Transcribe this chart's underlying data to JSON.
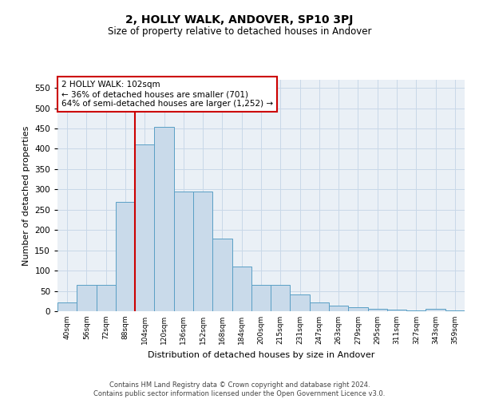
{
  "title": "2, HOLLY WALK, ANDOVER, SP10 3PJ",
  "subtitle": "Size of property relative to detached houses in Andover",
  "xlabel": "Distribution of detached houses by size in Andover",
  "ylabel": "Number of detached properties",
  "footer_line1": "Contains HM Land Registry data © Crown copyright and database right 2024.",
  "footer_line2": "Contains public sector information licensed under the Open Government Licence v3.0.",
  "bar_color": "#c9daea",
  "bar_edge_color": "#5a9fc5",
  "bg_color": "#eaf0f6",
  "grid_color": "#c8d8e8",
  "annotation_text": "2 HOLLY WALK: 102sqm\n← 36% of detached houses are smaller (701)\n64% of semi-detached houses are larger (1,252) →",
  "annotation_box_color": "#cc0000",
  "vline_color": "#cc0000",
  "vline_xidx": 4,
  "ylim": [
    0,
    570
  ],
  "yticks": [
    0,
    50,
    100,
    150,
    200,
    250,
    300,
    350,
    400,
    450,
    500,
    550
  ],
  "categories": [
    "40sqm",
    "56sqm",
    "72sqm",
    "88sqm",
    "104sqm",
    "120sqm",
    "136sqm",
    "152sqm",
    "168sqm",
    "184sqm",
    "200sqm",
    "215sqm",
    "231sqm",
    "247sqm",
    "263sqm",
    "279sqm",
    "295sqm",
    "311sqm",
    "327sqm",
    "343sqm",
    "359sqm"
  ],
  "values": [
    22,
    65,
    65,
    270,
    410,
    455,
    295,
    295,
    178,
    110,
    65,
    65,
    42,
    22,
    13,
    10,
    5,
    3,
    2,
    5,
    2
  ]
}
